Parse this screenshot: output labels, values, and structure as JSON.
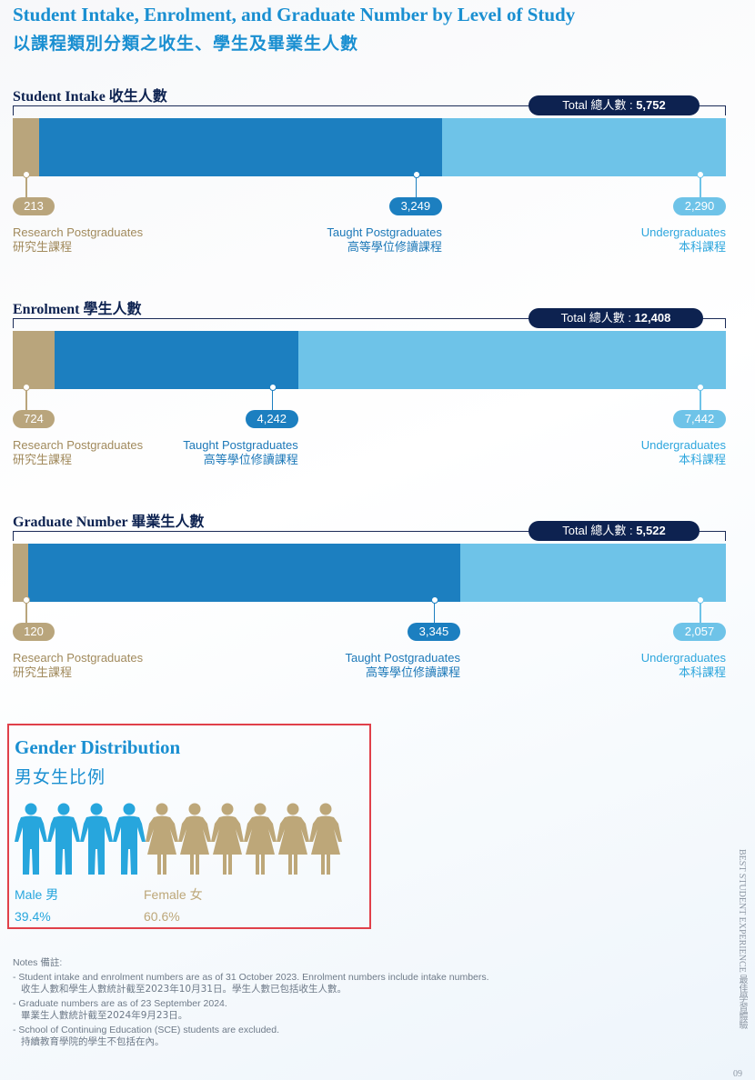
{
  "header": {
    "title_en": "Student Intake, Enrolment, and Graduate Number by Level of Study",
    "title_zh": "以課程類別分類之收生、學生及畢業生人數"
  },
  "colors": {
    "research": "#b9a57c",
    "taught": "#1c7fc0",
    "undergrad": "#6ec3e8",
    "navy": "#0d2250",
    "heading_blue": "#1a8fd1"
  },
  "sections": [
    {
      "title": "Student Intake 收生人數",
      "total_label": "Total 總人數 : ",
      "total_value": "5,752",
      "segments": [
        {
          "value": 213,
          "display": "213",
          "label_en": "Research Postgraduates",
          "label_zh": "研究生課程"
        },
        {
          "value": 3249,
          "display": "3,249",
          "label_en": "Taught Postgraduates",
          "label_zh": "高等學位修讀課程"
        },
        {
          "value": 2290,
          "display": "2,290",
          "label_en": "Undergraduates",
          "label_zh": "本科課程"
        }
      ]
    },
    {
      "title": "Enrolment 學生人數",
      "total_label": "Total 總人數 : ",
      "total_value": "12,408",
      "segments": [
        {
          "value": 724,
          "display": "724",
          "label_en": "Research Postgraduates",
          "label_zh": "研究生課程"
        },
        {
          "value": 4242,
          "display": "4,242",
          "label_en": "Taught Postgraduates",
          "label_zh": "高等學位修讀課程"
        },
        {
          "value": 7442,
          "display": "7,442",
          "label_en": "Undergraduates",
          "label_zh": "本科課程"
        }
      ]
    },
    {
      "title": "Graduate Number 畢業生人數",
      "total_label": "Total 總人數 : ",
      "total_value": "5,522",
      "segments": [
        {
          "value": 120,
          "display": "120",
          "label_en": "Research Postgraduates",
          "label_zh": "研究生課程"
        },
        {
          "value": 3345,
          "display": "3,345",
          "label_en": "Taught Postgraduates",
          "label_zh": "高等學位修讀課程"
        },
        {
          "value": 2057,
          "display": "2,057",
          "label_en": "Undergraduates",
          "label_zh": "本科課程"
        }
      ]
    }
  ],
  "gender": {
    "title_en": "Gender Distribution",
    "title_zh": "男女生比例",
    "male_label": "Male 男",
    "male_pct": "39.4%",
    "female_label": "Female 女",
    "female_pct": "60.6%",
    "male_color": "#27a6dd",
    "female_color": "#bda779",
    "male_icons": 4,
    "female_icons": 6
  },
  "notes": {
    "heading": "Notes 備註:",
    "items": [
      {
        "en": "- Student intake and enrolment numbers are as of 31 October 2023. Enrolment numbers include intake numbers.",
        "zh": "收生人數和學生人數統計截至2023年10月31日。學生人數已包括收生人數。"
      },
      {
        "en": "- Graduate numbers are as of 23 September 2024.",
        "zh": "畢業生人數統計截至2024年9月23日。"
      },
      {
        "en": "- School of Continuing Education (SCE) students are excluded.",
        "zh": "持續教育學院的學生不包括在內。"
      }
    ]
  },
  "side_text": "BEST STUDENT EXPERIENCE 最佳學習體驗",
  "page_number": "09"
}
